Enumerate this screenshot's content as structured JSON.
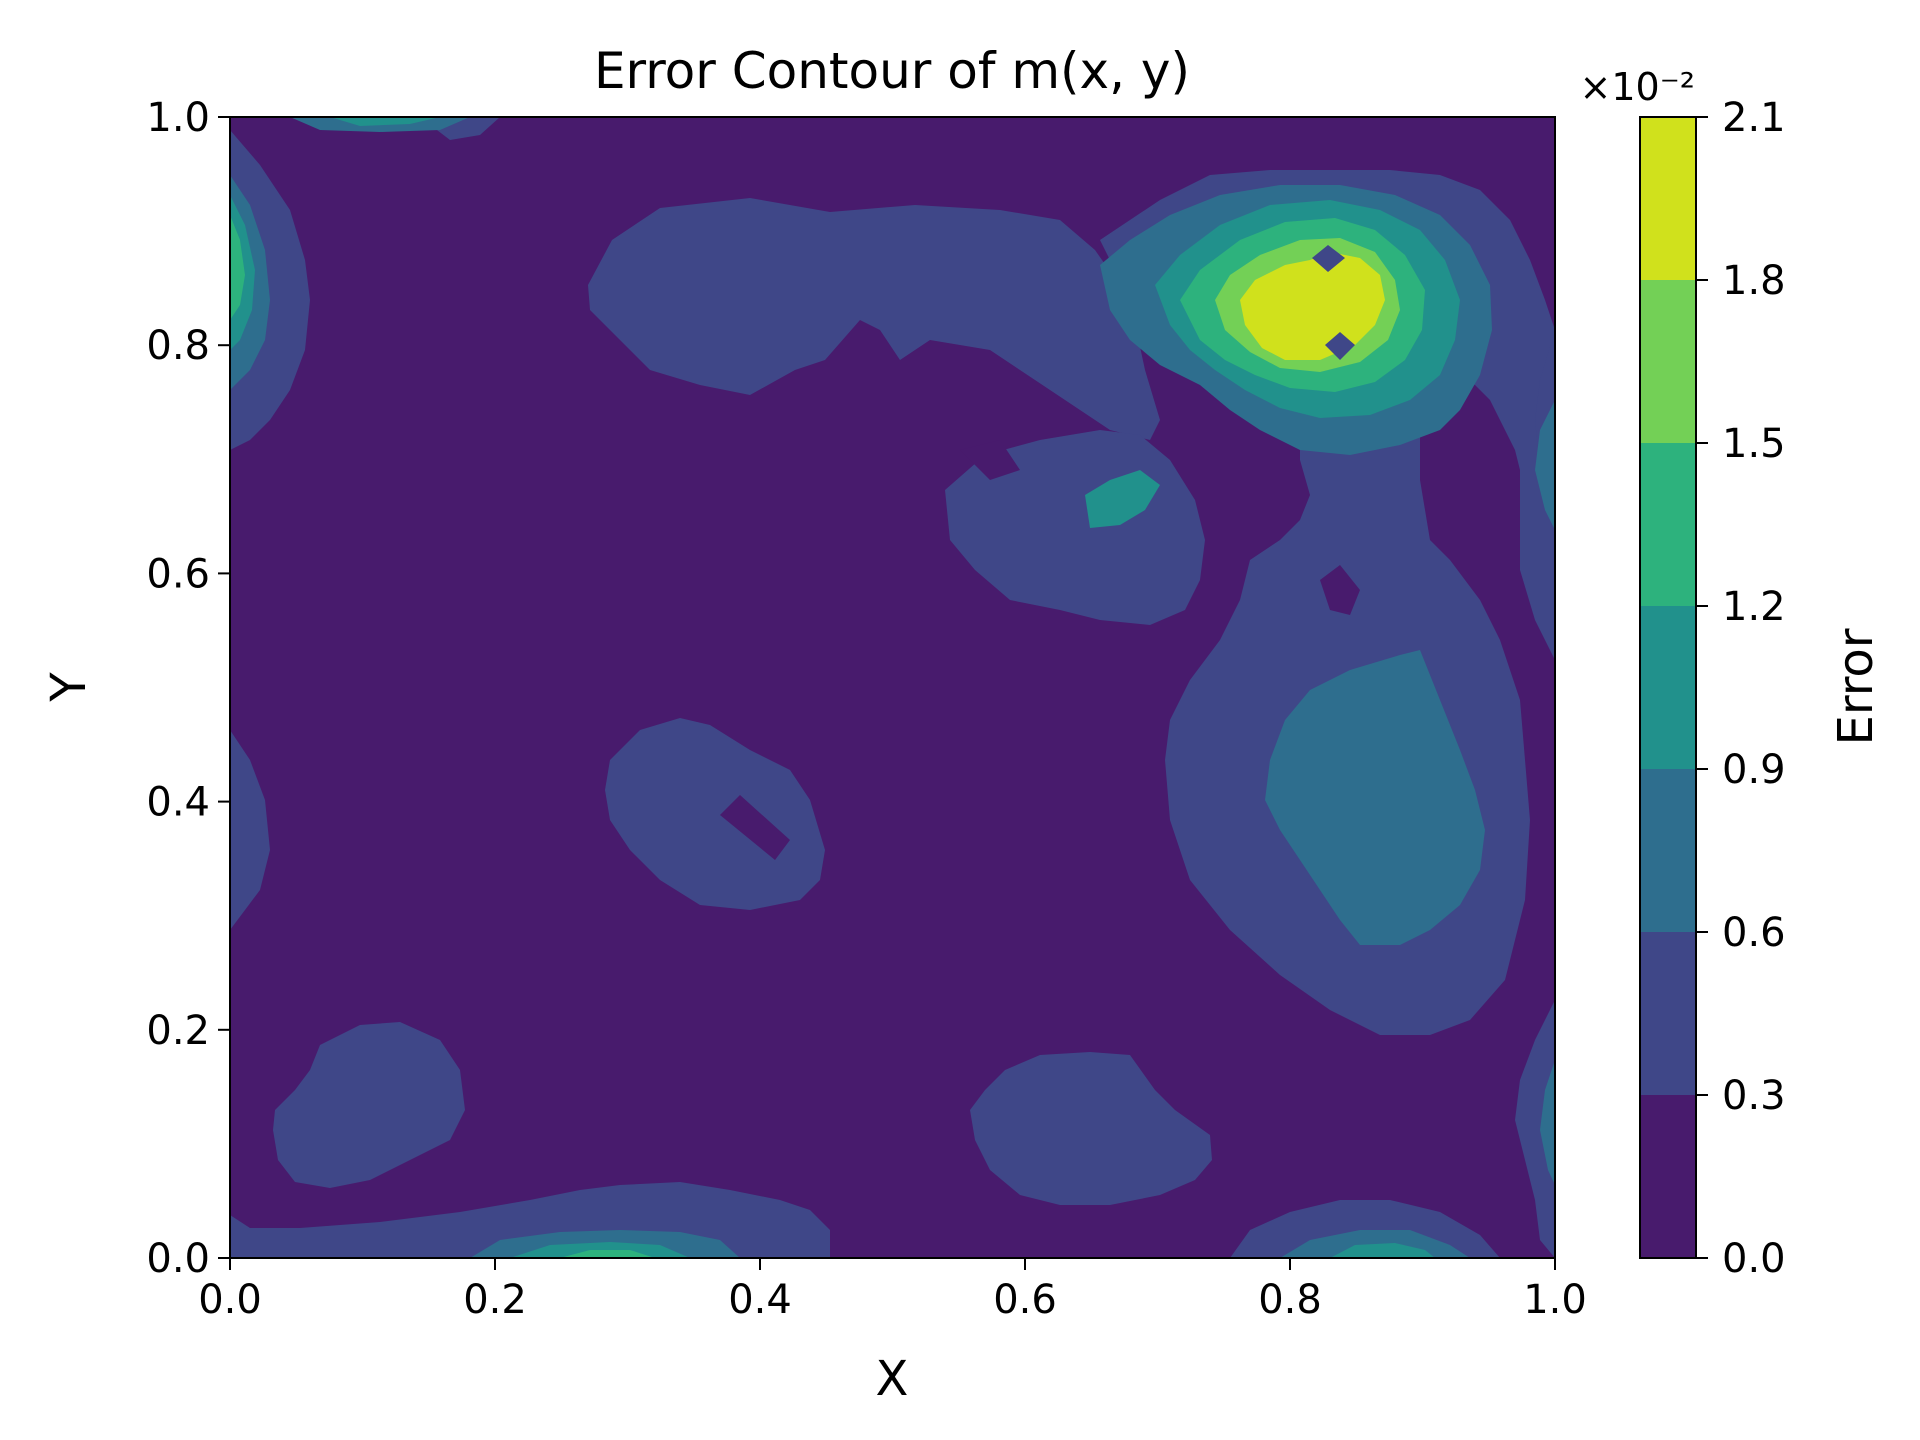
{
  "chart_data": {
    "type": "contourf",
    "title": "Error Contour of m(x, y)",
    "xlabel": "X",
    "ylabel": "Y",
    "xlim": [
      0.0,
      1.0
    ],
    "ylim": [
      0.0,
      1.0
    ],
    "xticks": [
      "0.0",
      "0.2",
      "0.4",
      "0.6",
      "0.8",
      "1.0"
    ],
    "yticks": [
      "0.0",
      "0.2",
      "0.4",
      "0.6",
      "0.8",
      "1.0"
    ],
    "colorbar": {
      "label": "Error",
      "multiplier": "×10⁻²",
      "levels": [
        0.0,
        0.3,
        0.6,
        0.9,
        1.2,
        1.5,
        1.8,
        2.1
      ],
      "tick_labels": [
        "0.0",
        "0.3",
        "0.6",
        "0.9",
        "1.2",
        "1.5",
        "1.8",
        "2.1"
      ],
      "colors": [
        "#481b6d",
        "#3f4788",
        "#2e6e8e",
        "#21918c",
        "#2db27d",
        "#73d056",
        "#d0e11c"
      ]
    },
    "regions": [
      {
        "feature": "peak",
        "x": 0.83,
        "y": 0.84,
        "level_index": 6
      },
      {
        "feature": "moderate",
        "x": 1.0,
        "y": 0.66,
        "level_index": 2
      },
      {
        "feature": "moderate",
        "x": 0.87,
        "y": 0.42,
        "level_index": 2
      },
      {
        "feature": "moderate",
        "x": 0.66,
        "y": 0.65,
        "level_index": 3
      },
      {
        "feature": "moderate",
        "x": 0.0,
        "y": 0.86,
        "level_index": 4
      },
      {
        "feature": "moderate",
        "x": 0.14,
        "y": 1.0,
        "level_index": 3
      },
      {
        "feature": "moderate",
        "x": 0.33,
        "y": 0.0,
        "level_index": 3
      },
      {
        "feature": "moderate",
        "x": 0.86,
        "y": 0.0,
        "level_index": 3
      },
      {
        "feature": "moderate",
        "x": 1.0,
        "y": 0.11,
        "level_index": 2
      },
      {
        "feature": "low",
        "x": 0.48,
        "y": 0.85,
        "level_index": 1
      },
      {
        "feature": "low",
        "x": 0.68,
        "y": 0.64,
        "level_index": 1
      },
      {
        "feature": "low",
        "x": 0.42,
        "y": 0.38,
        "level_index": 1
      },
      {
        "feature": "low",
        "x": 0.14,
        "y": 0.13,
        "level_index": 1
      },
      {
        "feature": "low",
        "x": 0.67,
        "y": 0.11,
        "level_index": 1
      },
      {
        "feature": "low",
        "x": 0.02,
        "y": 0.4,
        "level_index": 1
      }
    ]
  }
}
